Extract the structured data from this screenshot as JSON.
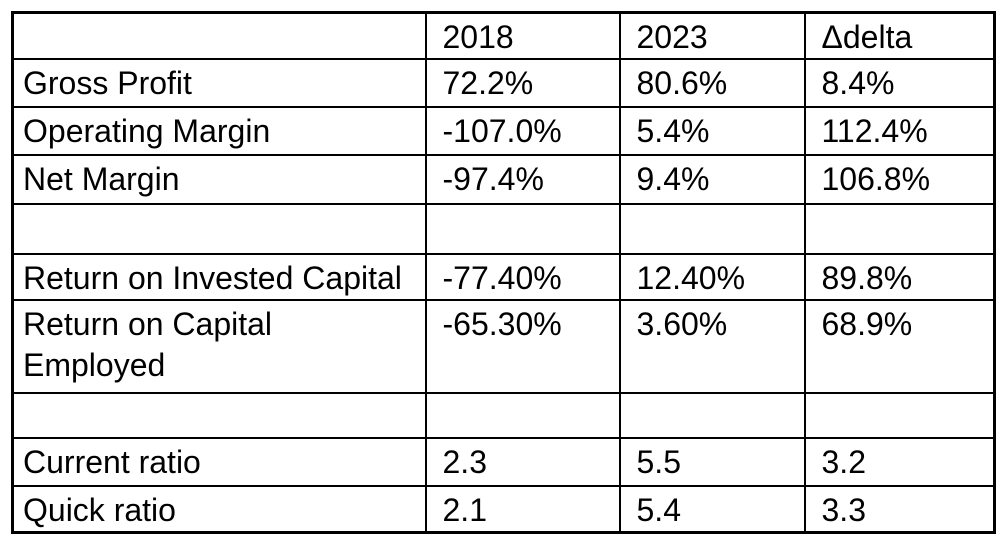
{
  "colors": {
    "background": "#ffffff",
    "border": "#000000",
    "text": "#000000"
  },
  "table": {
    "columns": [
      "",
      "2018",
      "2023",
      "Δdelta"
    ],
    "rows": [
      {
        "name": "gross-profit",
        "cells": [
          "Gross Profit",
          "72.2%",
          "80.6%",
          "8.4%"
        ]
      },
      {
        "name": "operating-margin",
        "cells": [
          "Operating Margin",
          "-107.0%",
          "5.4%",
          "112.4%"
        ]
      },
      {
        "name": "net-margin",
        "cells": [
          "Net Margin",
          "-97.4%",
          "9.4%",
          "106.8%"
        ]
      },
      {
        "name": "spacer-1",
        "cells": [
          "",
          "",
          "",
          ""
        ]
      },
      {
        "name": "return-on-invested-capital",
        "cells": [
          "Return on Invested Capital",
          "-77.40%",
          "12.40%",
          "89.8%"
        ]
      },
      {
        "name": "return-on-capital-employed",
        "cells": [
          "Return on Capital Employed",
          "-65.30%",
          "3.60%",
          "68.9%"
        ]
      },
      {
        "name": "spacer-2",
        "cells": [
          "",
          "",
          "",
          ""
        ]
      },
      {
        "name": "current-ratio",
        "cells": [
          "Current ratio",
          "2.3",
          "5.5",
          "3.2"
        ]
      },
      {
        "name": "quick-ratio",
        "cells": [
          "Quick ratio",
          "2.1",
          "5.4",
          "3.3"
        ]
      }
    ]
  }
}
